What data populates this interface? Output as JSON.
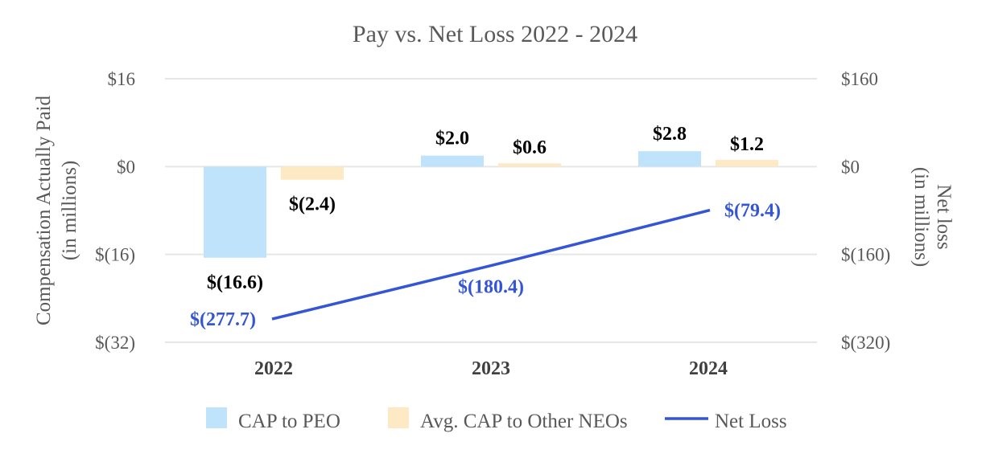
{
  "chart_data": {
    "type": "bar",
    "title": "Pay vs. Net Loss 2022 - 2024",
    "categories": [
      "2022",
      "2023",
      "2024"
    ],
    "left_axis": {
      "label_line1": "Compensation Actually Paid",
      "label_line2": "(in millions)",
      "min": -32,
      "max": 16,
      "ticks": [
        16,
        0,
        -16,
        -32
      ],
      "tick_labels": [
        "$16",
        "$0",
        "$(16)",
        "$(32)"
      ]
    },
    "right_axis": {
      "label_line1": "Net loss",
      "label_line2": "(in millions)",
      "min": -320,
      "max": 160,
      "ticks": [
        160,
        0,
        -160,
        -320
      ],
      "tick_labels": [
        "$160",
        "$0",
        "$(160)",
        "$(320)"
      ]
    },
    "grid": true,
    "legend_position": "bottom",
    "series": [
      {
        "name": "CAP to PEO",
        "kind": "bar",
        "axis": "left",
        "color": "#bfe3fb",
        "values": [
          -16.6,
          2.0,
          2.8
        ],
        "labels": [
          "$(16.6)",
          "$2.0",
          "$2.8"
        ]
      },
      {
        "name": "Avg. CAP to Other NEOs",
        "kind": "bar",
        "axis": "left",
        "color": "#fde9c4",
        "values": [
          -2.4,
          0.6,
          1.2
        ],
        "labels": [
          "$(2.4)",
          "$0.6",
          "$1.2"
        ]
      },
      {
        "name": "Net Loss",
        "kind": "line",
        "axis": "right",
        "color": "#3355d6",
        "values": [
          -277.7,
          -180.4,
          -79.4
        ],
        "labels": [
          "$(277.7)",
          "$(180.4)",
          "$(79.4)"
        ]
      }
    ]
  }
}
